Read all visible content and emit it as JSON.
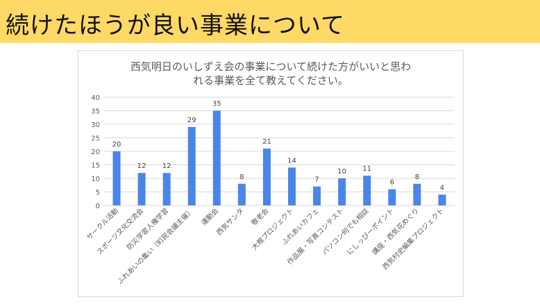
{
  "slide": {
    "title": "続けたほうが良い事業について"
  },
  "colors": {
    "header_bg": "#fed966",
    "bar": "#4a86e8",
    "grid": "#d9d9d9",
    "axis_text": "#595959"
  },
  "chart_data": {
    "type": "bar",
    "title_lines": [
      "西気明日のいしずえ会の事業について続けた方がいいと思わ",
      "れる事業を全て教えてください。"
    ],
    "categories": [
      "サークル活動",
      "スポーツ文化交流会",
      "防災学習人権学習",
      "ふれあいの集い（町民会議主催）",
      "運動会",
      "西気サンタ",
      "敬老会",
      "大根プロジェクト",
      "ふれあいカフェ",
      "作品展・写真コンテスト",
      "パソコン何でも相談",
      "にしっぴーポイント",
      "講座・西気花めぐり",
      "西気村史編集プロジェクト"
    ],
    "values": [
      20,
      12,
      12,
      29,
      35,
      8,
      21,
      14,
      7,
      10,
      11,
      6,
      8,
      4
    ],
    "y_ticks": [
      "0",
      "5",
      "10",
      "15",
      "20",
      "25",
      "30",
      "35",
      "40"
    ],
    "ylim": [
      0,
      40
    ],
    "grid": true,
    "legend": "none"
  }
}
